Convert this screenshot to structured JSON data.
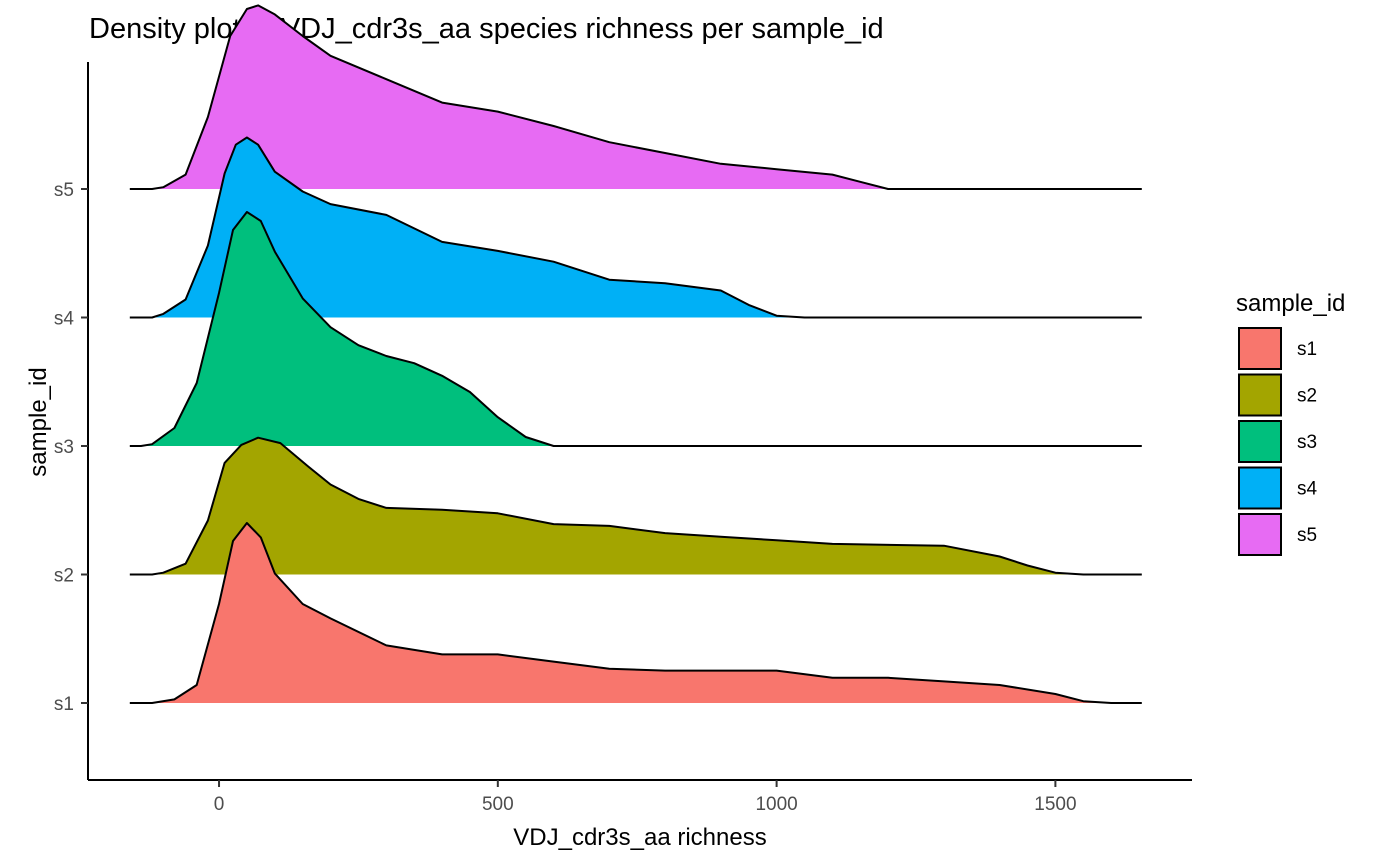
{
  "chart_data": {
    "type": "ridgeline-density",
    "title": "Density plot of VDJ_cdr3s_aa species richness per sample_id",
    "xlabel": "VDJ_cdr3s_aa richness",
    "ylabel": "sample_id",
    "xlim": [
      -235,
      1745
    ],
    "x_ticks": [
      0,
      500,
      1000,
      1500
    ],
    "x_tick_labels": [
      "0",
      "500",
      "1000",
      "1500"
    ],
    "categories": [
      "s1",
      "s2",
      "s3",
      "s4",
      "s5"
    ],
    "density_scale_max": 1.0,
    "grid": false,
    "legend": {
      "title": "sample_id",
      "position": "right"
    },
    "series": [
      {
        "name": "s1",
        "color": "#F8766D",
        "points": [
          [
            -160,
            0.0
          ],
          [
            -120,
            0.0
          ],
          [
            -80,
            0.02
          ],
          [
            -40,
            0.1
          ],
          [
            0,
            0.55
          ],
          [
            25,
            0.9
          ],
          [
            50,
            1.0
          ],
          [
            75,
            0.92
          ],
          [
            100,
            0.72
          ],
          [
            150,
            0.55
          ],
          [
            200,
            0.47
          ],
          [
            300,
            0.32
          ],
          [
            400,
            0.27
          ],
          [
            500,
            0.27
          ],
          [
            600,
            0.23
          ],
          [
            700,
            0.19
          ],
          [
            800,
            0.18
          ],
          [
            1000,
            0.18
          ],
          [
            1100,
            0.14
          ],
          [
            1200,
            0.14
          ],
          [
            1300,
            0.12
          ],
          [
            1400,
            0.1
          ],
          [
            1500,
            0.05
          ],
          [
            1550,
            0.01
          ],
          [
            1600,
            0.0
          ],
          [
            1655,
            0.0
          ]
        ]
      },
      {
        "name": "s2",
        "color": "#A3A500",
        "points": [
          [
            -160,
            0.0
          ],
          [
            -120,
            0.0
          ],
          [
            -100,
            0.01
          ],
          [
            -60,
            0.06
          ],
          [
            -20,
            0.3
          ],
          [
            10,
            0.62
          ],
          [
            40,
            0.72
          ],
          [
            70,
            0.76
          ],
          [
            110,
            0.73
          ],
          [
            160,
            0.6
          ],
          [
            200,
            0.5
          ],
          [
            250,
            0.42
          ],
          [
            300,
            0.37
          ],
          [
            400,
            0.36
          ],
          [
            500,
            0.34
          ],
          [
            600,
            0.28
          ],
          [
            700,
            0.27
          ],
          [
            800,
            0.23
          ],
          [
            900,
            0.21
          ],
          [
            1000,
            0.19
          ],
          [
            1100,
            0.17
          ],
          [
            1300,
            0.16
          ],
          [
            1400,
            0.1
          ],
          [
            1450,
            0.05
          ],
          [
            1500,
            0.01
          ],
          [
            1550,
            0.0
          ],
          [
            1655,
            0.0
          ]
        ]
      },
      {
        "name": "s3",
        "color": "#00BF7D",
        "points": [
          [
            -160,
            0.0
          ],
          [
            -140,
            0.0
          ],
          [
            -120,
            0.01
          ],
          [
            -80,
            0.1
          ],
          [
            -40,
            0.35
          ],
          [
            0,
            0.85
          ],
          [
            25,
            1.2
          ],
          [
            50,
            1.3
          ],
          [
            75,
            1.25
          ],
          [
            100,
            1.08
          ],
          [
            150,
            0.82
          ],
          [
            200,
            0.66
          ],
          [
            250,
            0.56
          ],
          [
            300,
            0.5
          ],
          [
            350,
            0.46
          ],
          [
            400,
            0.39
          ],
          [
            450,
            0.3
          ],
          [
            500,
            0.16
          ],
          [
            550,
            0.05
          ],
          [
            600,
            0.0
          ],
          [
            1655,
            0.0
          ]
        ]
      },
      {
        "name": "s4",
        "color": "#00B0F6",
        "points": [
          [
            -160,
            0.0
          ],
          [
            -120,
            0.0
          ],
          [
            -100,
            0.02
          ],
          [
            -60,
            0.1
          ],
          [
            -20,
            0.4
          ],
          [
            10,
            0.8
          ],
          [
            30,
            0.96
          ],
          [
            50,
            1.0
          ],
          [
            70,
            0.96
          ],
          [
            100,
            0.81
          ],
          [
            150,
            0.7
          ],
          [
            200,
            0.63
          ],
          [
            300,
            0.57
          ],
          [
            400,
            0.42
          ],
          [
            500,
            0.37
          ],
          [
            600,
            0.31
          ],
          [
            700,
            0.21
          ],
          [
            800,
            0.19
          ],
          [
            900,
            0.15
          ],
          [
            950,
            0.07
          ],
          [
            1000,
            0.01
          ],
          [
            1050,
            0.0
          ],
          [
            1655,
            0.0
          ]
        ]
      },
      {
        "name": "s5",
        "color": "#E76BF3",
        "points": [
          [
            -160,
            0.0
          ],
          [
            -120,
            0.0
          ],
          [
            -100,
            0.01
          ],
          [
            -60,
            0.08
          ],
          [
            -20,
            0.4
          ],
          [
            20,
            0.85
          ],
          [
            50,
            1.0
          ],
          [
            70,
            1.02
          ],
          [
            100,
            0.97
          ],
          [
            150,
            0.85
          ],
          [
            200,
            0.74
          ],
          [
            300,
            0.61
          ],
          [
            400,
            0.48
          ],
          [
            500,
            0.43
          ],
          [
            600,
            0.35
          ],
          [
            700,
            0.26
          ],
          [
            800,
            0.2
          ],
          [
            900,
            0.14
          ],
          [
            1000,
            0.11
          ],
          [
            1100,
            0.08
          ],
          [
            1150,
            0.04
          ],
          [
            1200,
            0.0
          ],
          [
            1250,
            0.0
          ],
          [
            1655,
            0.0
          ]
        ]
      }
    ]
  }
}
